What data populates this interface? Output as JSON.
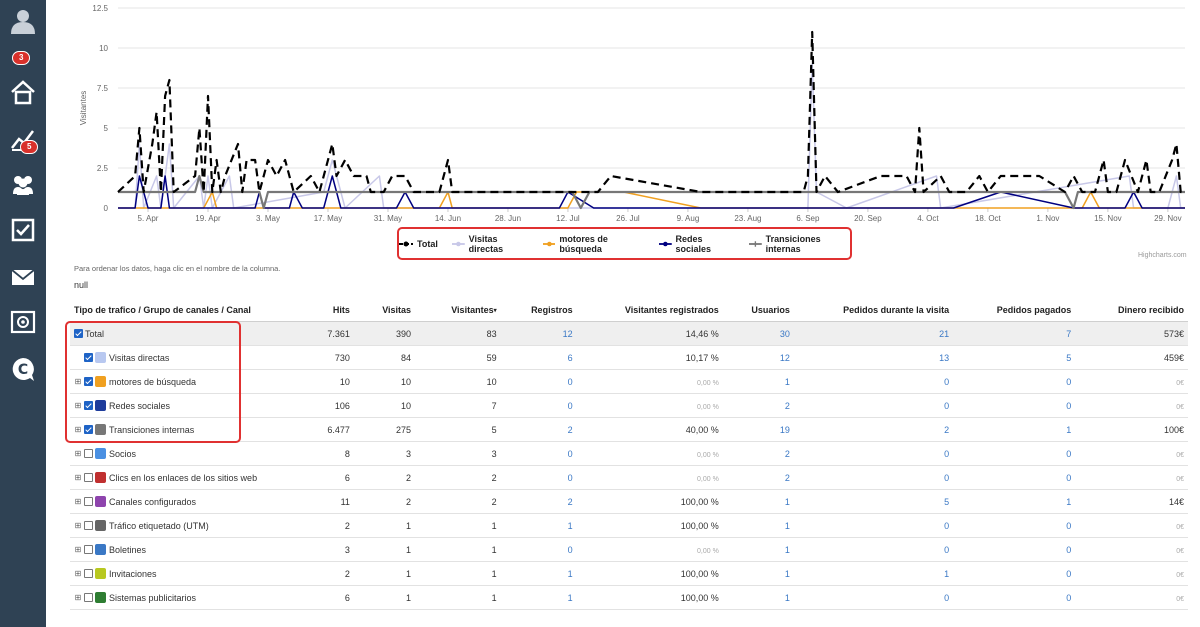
{
  "sidebar": {
    "badges": {
      "profile": "3",
      "stats": "5"
    }
  },
  "legend": [
    {
      "name": "Total",
      "color": "#000000"
    },
    {
      "name": "Visitas directas",
      "color": "#c8c8e8"
    },
    {
      "name": "motores de búsqueda",
      "color": "#f0a020"
    },
    {
      "name": "Redes sociales",
      "color": "#000080"
    },
    {
      "name": "Transiciones internas",
      "color": "#777777"
    }
  ],
  "chart_data": {
    "type": "line",
    "ylabel": "Visitantes",
    "yticks": [
      "0",
      "2.5",
      "5",
      "7.5",
      "10",
      "12.5"
    ],
    "ylim": [
      0,
      12.5
    ],
    "xticks": [
      "5. Apr",
      "19. Apr",
      "3. May",
      "17. May",
      "31. May",
      "14. Jun",
      "28. Jun",
      "12. Jul",
      "26. Jul",
      "9. Aug",
      "23. Aug",
      "6. Sep",
      "20. Sep",
      "4. Oct",
      "18. Oct",
      "1. Nov",
      "15. Nov",
      "29. Nov"
    ],
    "x_start": "2024-03-29",
    "x_end": "2024-12-03",
    "series": [
      {
        "name": "Total",
        "color": "#000000",
        "dash": true,
        "points": [
          [
            "2024-03-29",
            1
          ],
          [
            "2024-04-02",
            2
          ],
          [
            "2024-04-03",
            5
          ],
          [
            "2024-04-04",
            1
          ],
          [
            "2024-04-06",
            4
          ],
          [
            "2024-04-07",
            6
          ],
          [
            "2024-04-08",
            1
          ],
          [
            "2024-04-09",
            7
          ],
          [
            "2024-04-10",
            8
          ],
          [
            "2024-04-11",
            1
          ],
          [
            "2024-04-16",
            2
          ],
          [
            "2024-04-17",
            5
          ],
          [
            "2024-04-18",
            1
          ],
          [
            "2024-04-19",
            7
          ],
          [
            "2024-04-20",
            1
          ],
          [
            "2024-04-21",
            3
          ],
          [
            "2024-04-22",
            1
          ],
          [
            "2024-04-23",
            2
          ],
          [
            "2024-04-26",
            4
          ],
          [
            "2024-04-27",
            1
          ],
          [
            "2024-04-28",
            3
          ],
          [
            "2024-04-30",
            3
          ],
          [
            "2024-05-01",
            1
          ],
          [
            "2024-05-03",
            3
          ],
          [
            "2024-05-05",
            2
          ],
          [
            "2024-05-07",
            3
          ],
          [
            "2024-05-09",
            1
          ],
          [
            "2024-05-13",
            2
          ],
          [
            "2024-05-15",
            1
          ],
          [
            "2024-05-18",
            4
          ],
          [
            "2024-05-19",
            2
          ],
          [
            "2024-05-21",
            3
          ],
          [
            "2024-05-23",
            2
          ],
          [
            "2024-05-26",
            2
          ],
          [
            "2024-05-27",
            1
          ],
          [
            "2024-05-30",
            1
          ],
          [
            "2024-06-01",
            2
          ],
          [
            "2024-06-04",
            2
          ],
          [
            "2024-06-06",
            1
          ],
          [
            "2024-06-12",
            1
          ],
          [
            "2024-06-14",
            3
          ],
          [
            "2024-06-15",
            1
          ],
          [
            "2024-07-01",
            1
          ],
          [
            "2024-07-12",
            1
          ],
          [
            "2024-07-15",
            1
          ],
          [
            "2024-07-19",
            1
          ],
          [
            "2024-07-22",
            2
          ],
          [
            "2024-08-12",
            1
          ],
          [
            "2024-09-05",
            1
          ],
          [
            "2024-09-06",
            2
          ],
          [
            "2024-09-07",
            11
          ],
          [
            "2024-09-08",
            1
          ],
          [
            "2024-09-10",
            2
          ],
          [
            "2024-09-13",
            1
          ],
          [
            "2024-09-23",
            2
          ],
          [
            "2024-09-29",
            2
          ],
          [
            "2024-10-01",
            1
          ],
          [
            "2024-10-02",
            5
          ],
          [
            "2024-10-03",
            1
          ],
          [
            "2024-10-07",
            2
          ],
          [
            "2024-10-09",
            1
          ],
          [
            "2024-10-13",
            1
          ],
          [
            "2024-10-16",
            2
          ],
          [
            "2024-10-18",
            1
          ],
          [
            "2024-10-21",
            2
          ],
          [
            "2024-10-30",
            2
          ],
          [
            "2024-11-05",
            1
          ],
          [
            "2024-11-07",
            2
          ],
          [
            "2024-11-09",
            1
          ],
          [
            "2024-11-12",
            1
          ],
          [
            "2024-11-14",
            3
          ],
          [
            "2024-11-15",
            1
          ],
          [
            "2024-11-17",
            1
          ],
          [
            "2024-11-19",
            3
          ],
          [
            "2024-11-22",
            1
          ],
          [
            "2024-11-24",
            3
          ],
          [
            "2024-11-25",
            1
          ],
          [
            "2024-11-27",
            1
          ],
          [
            "2024-11-30",
            3
          ],
          [
            "2024-12-01",
            4
          ],
          [
            "2024-12-02",
            1
          ],
          [
            "2024-12-03",
            1
          ]
        ]
      },
      {
        "name": "Visitas directas",
        "color": "#c8c8e8",
        "dash": false,
        "points": [
          [
            "2024-03-29",
            0
          ],
          [
            "2024-04-02",
            0
          ],
          [
            "2024-04-03",
            4
          ],
          [
            "2024-04-04",
            0
          ],
          [
            "2024-04-07",
            2
          ],
          [
            "2024-04-08",
            0
          ],
          [
            "2024-04-10",
            4
          ],
          [
            "2024-04-11",
            0
          ],
          [
            "2024-04-17",
            2
          ],
          [
            "2024-04-18",
            0
          ],
          [
            "2024-04-19",
            2
          ],
          [
            "2024-04-20",
            0
          ],
          [
            "2024-04-24",
            2
          ],
          [
            "2024-04-25",
            0
          ],
          [
            "2024-05-16",
            1
          ],
          [
            "2024-05-18",
            3
          ],
          [
            "2024-05-21",
            0
          ],
          [
            "2024-05-29",
            2
          ],
          [
            "2024-05-30",
            0
          ],
          [
            "2024-06-26",
            0
          ],
          [
            "2024-09-06",
            0
          ],
          [
            "2024-09-07",
            9
          ],
          [
            "2024-09-08",
            1
          ],
          [
            "2024-09-15",
            0
          ],
          [
            "2024-10-06",
            2
          ],
          [
            "2024-10-07",
            0
          ],
          [
            "2024-11-20",
            2
          ],
          [
            "2024-11-21",
            0
          ],
          [
            "2024-11-29",
            0
          ],
          [
            "2024-12-01",
            2
          ],
          [
            "2024-12-02",
            0
          ],
          [
            "2024-12-03",
            0
          ]
        ]
      },
      {
        "name": "motores de búsqueda",
        "color": "#f0a020",
        "dash": false,
        "points": [
          [
            "2024-03-29",
            0
          ],
          [
            "2024-04-18",
            0
          ],
          [
            "2024-04-20",
            1
          ],
          [
            "2024-04-21",
            0
          ],
          [
            "2024-06-12",
            0
          ],
          [
            "2024-06-14",
            1
          ],
          [
            "2024-06-15",
            0
          ],
          [
            "2024-07-12",
            0
          ],
          [
            "2024-07-14",
            1
          ],
          [
            "2024-07-25",
            1
          ],
          [
            "2024-08-12",
            0
          ],
          [
            "2024-11-09",
            0
          ],
          [
            "2024-11-11",
            1
          ],
          [
            "2024-11-13",
            0
          ],
          [
            "2024-12-03",
            0
          ]
        ]
      },
      {
        "name": "Redes sociales",
        "color": "#000080",
        "dash": false,
        "points": [
          [
            "2024-03-29",
            0
          ],
          [
            "2024-04-02",
            0
          ],
          [
            "2024-04-03",
            2
          ],
          [
            "2024-04-05",
            0
          ],
          [
            "2024-04-08",
            0
          ],
          [
            "2024-04-09",
            2
          ],
          [
            "2024-04-10",
            0
          ],
          [
            "2024-04-30",
            0
          ],
          [
            "2024-05-01",
            1
          ],
          [
            "2024-05-02",
            0
          ],
          [
            "2024-05-08",
            0
          ],
          [
            "2024-05-09",
            1
          ],
          [
            "2024-05-11",
            0
          ],
          [
            "2024-05-16",
            0
          ],
          [
            "2024-05-18",
            2
          ],
          [
            "2024-05-20",
            0
          ],
          [
            "2024-06-02",
            0
          ],
          [
            "2024-06-04",
            1
          ],
          [
            "2024-06-06",
            0
          ],
          [
            "2024-07-10",
            0
          ],
          [
            "2024-07-12",
            1
          ],
          [
            "2024-07-18",
            0
          ],
          [
            "2024-10-10",
            0
          ],
          [
            "2024-10-21",
            1
          ],
          [
            "2024-11-07",
            0
          ],
          [
            "2024-11-19",
            0
          ],
          [
            "2024-11-21",
            1
          ],
          [
            "2024-11-23",
            0
          ],
          [
            "2024-12-03",
            0
          ]
        ]
      },
      {
        "name": "Transiciones internas",
        "color": "#777777",
        "dash": false,
        "points": [
          [
            "2024-03-29",
            1
          ],
          [
            "2024-04-16",
            1
          ],
          [
            "2024-04-17",
            2
          ],
          [
            "2024-04-18",
            1
          ],
          [
            "2024-05-01",
            1
          ],
          [
            "2024-05-02",
            0
          ],
          [
            "2024-05-03",
            1
          ],
          [
            "2024-07-13",
            1
          ],
          [
            "2024-07-15",
            0
          ],
          [
            "2024-07-17",
            1
          ],
          [
            "2024-10-29",
            1
          ],
          [
            "2024-11-05",
            1
          ],
          [
            "2024-11-07",
            0
          ],
          [
            "2024-11-08",
            1
          ],
          [
            "2024-12-03",
            1
          ]
        ]
      }
    ]
  },
  "credits": "Highcharts.com",
  "hint": "Para ordenar los datos, haga clic en el nombre de la columna.",
  "null_text": "null",
  "table": {
    "headers": [
      "Tipo de trafico / Grupo de canales / Canal",
      "Hits",
      "Visitas",
      "Visitantes",
      "Registros",
      "Visitantes registrados",
      "Usuarios",
      "Pedidos durante la visita",
      "Pedidos pagados",
      "Dinero recibido"
    ],
    "sort_arrow": "▾",
    "rows": [
      {
        "name": "Total",
        "hits": "7.361",
        "visitas": "390",
        "visitantes": "83",
        "registros": "12",
        "vreg": "14,46 %",
        "usuarios": "30",
        "pedidos": "21",
        "pagados": "7",
        "dinero": "573€"
      },
      {
        "name": "Visitas directas",
        "hits": "730",
        "visitas": "84",
        "visitantes": "59",
        "registros": "6",
        "vreg": "10,17 %",
        "usuarios": "12",
        "pedidos": "13",
        "pagados": "5",
        "dinero": "459€"
      },
      {
        "name": "motores de búsqueda",
        "hits": "10",
        "visitas": "10",
        "visitantes": "10",
        "registros": "0",
        "vreg": "0,00 %",
        "usuarios": "1",
        "pedidos": "0",
        "pagados": "0",
        "dinero": "0€"
      },
      {
        "name": "Redes sociales",
        "hits": "106",
        "visitas": "10",
        "visitantes": "7",
        "registros": "0",
        "vreg": "0,00 %",
        "usuarios": "2",
        "pedidos": "0",
        "pagados": "0",
        "dinero": "0€"
      },
      {
        "name": "Transiciones internas",
        "hits": "6.477",
        "visitas": "275",
        "visitantes": "5",
        "registros": "2",
        "vreg": "40,00 %",
        "usuarios": "19",
        "pedidos": "2",
        "pagados": "1",
        "dinero": "100€"
      },
      {
        "name": "Socios",
        "hits": "8",
        "visitas": "3",
        "visitantes": "3",
        "registros": "0",
        "vreg": "0,00 %",
        "usuarios": "2",
        "pedidos": "0",
        "pagados": "0",
        "dinero": "0€"
      },
      {
        "name": "Clics en los enlaces de los sitios web",
        "hits": "6",
        "visitas": "2",
        "visitantes": "2",
        "registros": "0",
        "vreg": "0,00 %",
        "usuarios": "2",
        "pedidos": "0",
        "pagados": "0",
        "dinero": "0€"
      },
      {
        "name": "Canales configurados",
        "hits": "11",
        "visitas": "2",
        "visitantes": "2",
        "registros": "2",
        "vreg": "100,00 %",
        "usuarios": "1",
        "pedidos": "5",
        "pagados": "1",
        "dinero": "14€"
      },
      {
        "name": "Tráfico etiquetado (UTM)",
        "hits": "2",
        "visitas": "1",
        "visitantes": "1",
        "registros": "1",
        "vreg": "100,00 %",
        "usuarios": "1",
        "pedidos": "0",
        "pagados": "0",
        "dinero": "0€"
      },
      {
        "name": "Boletines",
        "hits": "3",
        "visitas": "1",
        "visitantes": "1",
        "registros": "0",
        "vreg": "0,00 %",
        "usuarios": "1",
        "pedidos": "0",
        "pagados": "0",
        "dinero": "0€"
      },
      {
        "name": "Invitaciones",
        "hits": "2",
        "visitas": "1",
        "visitantes": "1",
        "registros": "1",
        "vreg": "100,00 %",
        "usuarios": "1",
        "pedidos": "1",
        "pagados": "0",
        "dinero": "0€"
      },
      {
        "name": "Sistemas publicitarios",
        "hits": "6",
        "visitas": "1",
        "visitantes": "1",
        "registros": "1",
        "vreg": "100,00 %",
        "usuarios": "1",
        "pedidos": "0",
        "pagados": "0",
        "dinero": "0€"
      }
    ]
  }
}
